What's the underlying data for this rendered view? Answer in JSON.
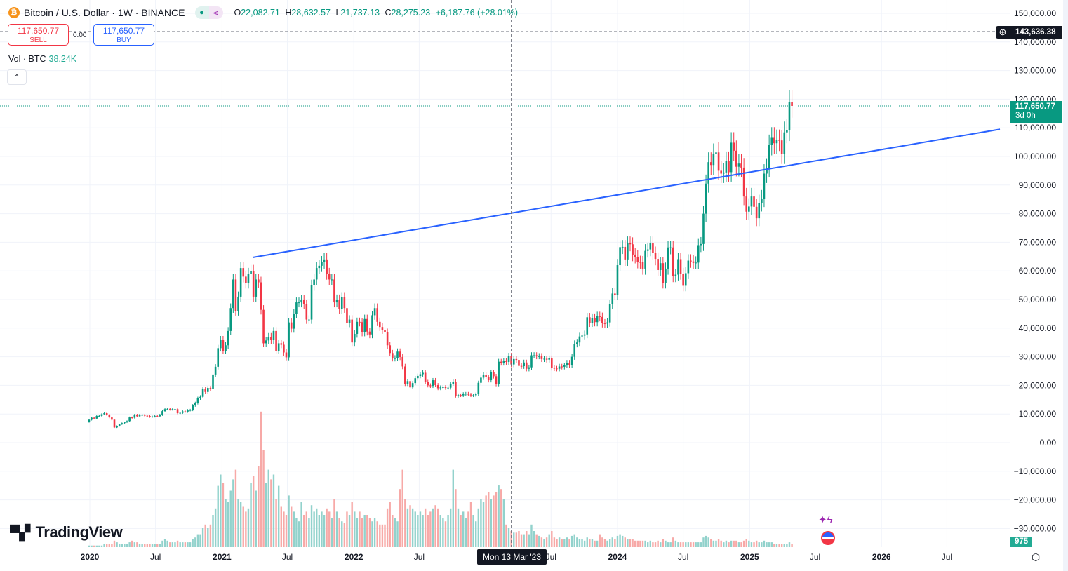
{
  "header": {
    "symbol_title": "Bitcoin / U.S. Dollar · 1W · BINANCE",
    "coin_icon": "bitcoin-icon",
    "ohlc": {
      "o_label": "O",
      "o": "22,082.71",
      "h_label": "H",
      "h": "28,632.57",
      "l_label": "L",
      "l": "21,737.13",
      "c_label": "C",
      "c": "28,275.23",
      "change": "+6,187.76 (+28.01%)"
    }
  },
  "trade": {
    "sell_price": "117,650.77",
    "sell_label": "SELL",
    "spread": "0.00",
    "buy_price": "117,650.77",
    "buy_label": "BUY"
  },
  "volume_legend": {
    "label": "Vol · BTC",
    "value": "38.24K"
  },
  "collapse_icon": "chevron-up-icon",
  "logo_text": "TradingView",
  "crosshair": {
    "date_label": "Mon 13 Mar '23",
    "date": "2023-03-13",
    "price": 143636.38,
    "price_label": "143,636.38"
  },
  "last_price": {
    "price": 117650.77,
    "label": "117,650.77",
    "countdown": "3d 0h"
  },
  "volume_badge": "975",
  "colors": {
    "up": "#089981",
    "down": "#f23645",
    "vol_up": "#92d2cc",
    "vol_down": "#f7a9a7",
    "trendline": "#2962ff",
    "last_price": "#089981"
  },
  "chart_data": {
    "type": "candlestick",
    "interval": "1W",
    "first_candle": "2019-12-30",
    "ylim": [
      -30000,
      150000
    ],
    "y_ticks": [
      "150,000.00",
      "140,000.00",
      "130,000.00",
      "120,000.00",
      "110,000.00",
      "100,000.00",
      "90,000.00",
      "80,000.00",
      "70,000.00",
      "60,000.00",
      "50,000.00",
      "40,000.00",
      "30,000.00",
      "20,000.00",
      "10,000.00",
      "0.00",
      "−10,000.00",
      "−20,000.00",
      "−30,000.00"
    ],
    "y_tick_values": [
      150000,
      140000,
      130000,
      120000,
      110000,
      100000,
      90000,
      80000,
      70000,
      60000,
      50000,
      40000,
      30000,
      20000,
      10000,
      0,
      -10000,
      -20000,
      -30000
    ],
    "x_ticks": [
      {
        "label": "2020",
        "date": "2020-01-01",
        "year": true
      },
      {
        "label": "Jul",
        "date": "2020-07-01"
      },
      {
        "label": "2021",
        "date": "2021-01-01",
        "year": true
      },
      {
        "label": "Jul",
        "date": "2021-07-01"
      },
      {
        "label": "2022",
        "date": "2022-01-01",
        "year": true
      },
      {
        "label": "Jul",
        "date": "2022-07-01"
      },
      {
        "label": "Jul",
        "date": "2023-07-01"
      },
      {
        "label": "2024",
        "date": "2024-01-01",
        "year": true
      },
      {
        "label": "Jul",
        "date": "2024-07-01"
      },
      {
        "label": "2025",
        "date": "2025-01-01",
        "year": true
      },
      {
        "label": "Jul",
        "date": "2025-07-01"
      },
      {
        "label": "2026",
        "date": "2026-01-01",
        "year": true
      },
      {
        "label": "Jul",
        "date": "2026-07-01"
      }
    ],
    "open_first": 7200,
    "close": [
      8000,
      8700,
      8400,
      9300,
      9350,
      9900,
      10300,
      9700,
      8800,
      8000,
      5300,
      5800,
      6400,
      6800,
      7100,
      7500,
      8800,
      8700,
      9700,
      9200,
      9700,
      9700,
      9400,
      9300,
      9000,
      9100,
      9250,
      9200,
      9700,
      11000,
      11700,
      11800,
      11600,
      11700,
      11700,
      10300,
      10400,
      10900,
      10800,
      11300,
      11400,
      13000,
      13800,
      15500,
      16000,
      18700,
      17700,
      19100,
      18800,
      23800,
      26500,
      33000,
      36000,
      32000,
      34000,
      39000,
      47000,
      57000,
      46000,
      51000,
      61000,
      58000,
      55800,
      59000,
      60000,
      51000,
      57000,
      56000,
      46400,
      34700,
      35700,
      37000,
      35800,
      39000,
      32000,
      34700,
      34200,
      31500,
      29800,
      42000,
      39800,
      45000,
      49000,
      49000,
      49900,
      48300,
      43000,
      43000,
      55000,
      57000,
      61000,
      61800,
      63000,
      64000,
      59000,
      57000,
      57000,
      49000,
      50000,
      46700,
      50800,
      47000,
      41800,
      43000,
      35000,
      38000,
      42200,
      42100,
      38500,
      43200,
      38800,
      37800,
      44500,
      47000,
      42200,
      40400,
      39400,
      38500,
      34000,
      31300,
      29400,
      29500,
      31800,
      29900,
      26600,
      20500,
      21500,
      19300,
      20800,
      22500,
      23300,
      23900,
      24400,
      21200,
      20000,
      19800,
      21800,
      20100,
      19000,
      19300,
      19400,
      19100,
      19200,
      20600,
      21300,
      16300,
      16600,
      16500,
      17000,
      17100,
      16800,
      16500,
      16550,
      16900,
      20900,
      22700,
      23700,
      22900,
      21800,
      24600,
      23200,
      20400,
      28275,
      27900,
      28500,
      28200,
      30300,
      27300,
      29200,
      28900,
      26800,
      26700,
      28000,
      25800,
      26300,
      30500,
      30500,
      30200,
      30200,
      29200,
      29300,
      29000,
      29400,
      26100,
      25900,
      25800,
      26600,
      26500,
      27000,
      27900,
      27100,
      30000,
      34500,
      35000,
      37100,
      37400,
      37800,
      43800,
      41900,
      43600,
      42100,
      44200,
      43900,
      41700,
      41600,
      42000,
      48300,
      52100,
      51700,
      62000,
      68300,
      68400,
      64000,
      69600,
      69300,
      65700,
      64900,
      63100,
      63000,
      60800,
      67000,
      67500,
      69600,
      66200,
      64200,
      60300,
      62700,
      55800,
      60800,
      68200,
      68200,
      58100,
      58700,
      64100,
      59000,
      54800,
      59200,
      63600,
      63300,
      62800,
      62900,
      69000,
      69400,
      80000,
      90500,
      98000,
      97000,
      101000,
      101400,
      95000,
      94000,
      94400,
      98300,
      94500,
      104800,
      102000,
      96400,
      97500,
      96100,
      86000,
      80700,
      82500,
      86000,
      82400,
      78400,
      83700,
      85300,
      94000,
      96000,
      104000,
      106500,
      104600,
      105700,
      105600,
      100900,
      108400,
      109200,
      119100,
      117650.77
    ],
    "volume_k": [
      1,
      1,
      1,
      1,
      1,
      1,
      2,
      2,
      2,
      2,
      4,
      3,
      2,
      2,
      2,
      2,
      3,
      4,
      3,
      3,
      2,
      2,
      2,
      2,
      2,
      2,
      2,
      2,
      2,
      4,
      5,
      4,
      3,
      3,
      3,
      4,
      3,
      3,
      3,
      3,
      3,
      5,
      6,
      8,
      8,
      12,
      14,
      12,
      14,
      20,
      24,
      38,
      45,
      40,
      30,
      28,
      35,
      42,
      48,
      30,
      28,
      25,
      22,
      24,
      40,
      44,
      35,
      50,
      84,
      60,
      40,
      48,
      42,
      45,
      30,
      38,
      25,
      22,
      20,
      32,
      25,
      22,
      18,
      16,
      28,
      20,
      22,
      18,
      26,
      22,
      24,
      20,
      22,
      20,
      24,
      22,
      18,
      30,
      22,
      18,
      16,
      15,
      22,
      20,
      28,
      22,
      18,
      22,
      18,
      20,
      20,
      18,
      16,
      18,
      16,
      14,
      14,
      14,
      24,
      28,
      20,
      18,
      16,
      36,
      48,
      30,
      24,
      26,
      24,
      22,
      20,
      22,
      20,
      24,
      20,
      22,
      24,
      26,
      24,
      20,
      18,
      16,
      20,
      24,
      48,
      36,
      24,
      20,
      22,
      18,
      22,
      28,
      20,
      16,
      24,
      30,
      28,
      32,
      34,
      30,
      32,
      34,
      38.24,
      36,
      30,
      14,
      12,
      10,
      9,
      9,
      10,
      8,
      8,
      10,
      8,
      14,
      10,
      8,
      7,
      6,
      5,
      6,
      8,
      10,
      6,
      5,
      6,
      5,
      5,
      6,
      5,
      7,
      8,
      6,
      5,
      5,
      4,
      6,
      5,
      5,
      4,
      4,
      8,
      6,
      5,
      4,
      5,
      6,
      5,
      7,
      8,
      7,
      6,
      5,
      5,
      5,
      4,
      4,
      4,
      4,
      4,
      3,
      4,
      3,
      3,
      4,
      3,
      5,
      4,
      3,
      3,
      6,
      4,
      3,
      3,
      3,
      3,
      3,
      3,
      3,
      3,
      3,
      3,
      6,
      7,
      6,
      5,
      4,
      4,
      5,
      4,
      3,
      4,
      3,
      4,
      4,
      4,
      3,
      3,
      4,
      5,
      4,
      3,
      3,
      4,
      3,
      3,
      4,
      3,
      3,
      3,
      2,
      2,
      2,
      2,
      2,
      2,
      3,
      2
    ],
    "trendline": {
      "start": {
        "date": "2021-03-27",
        "price": 64700
      },
      "end": {
        "date": "2026-11-25",
        "price": 109500
      }
    },
    "grid": true
  },
  "events": [
    {
      "icon": "lightning-event-icon"
    },
    {
      "icon": "us-flag-economic-event-icon"
    }
  ],
  "settings_icon": "settings-icon"
}
